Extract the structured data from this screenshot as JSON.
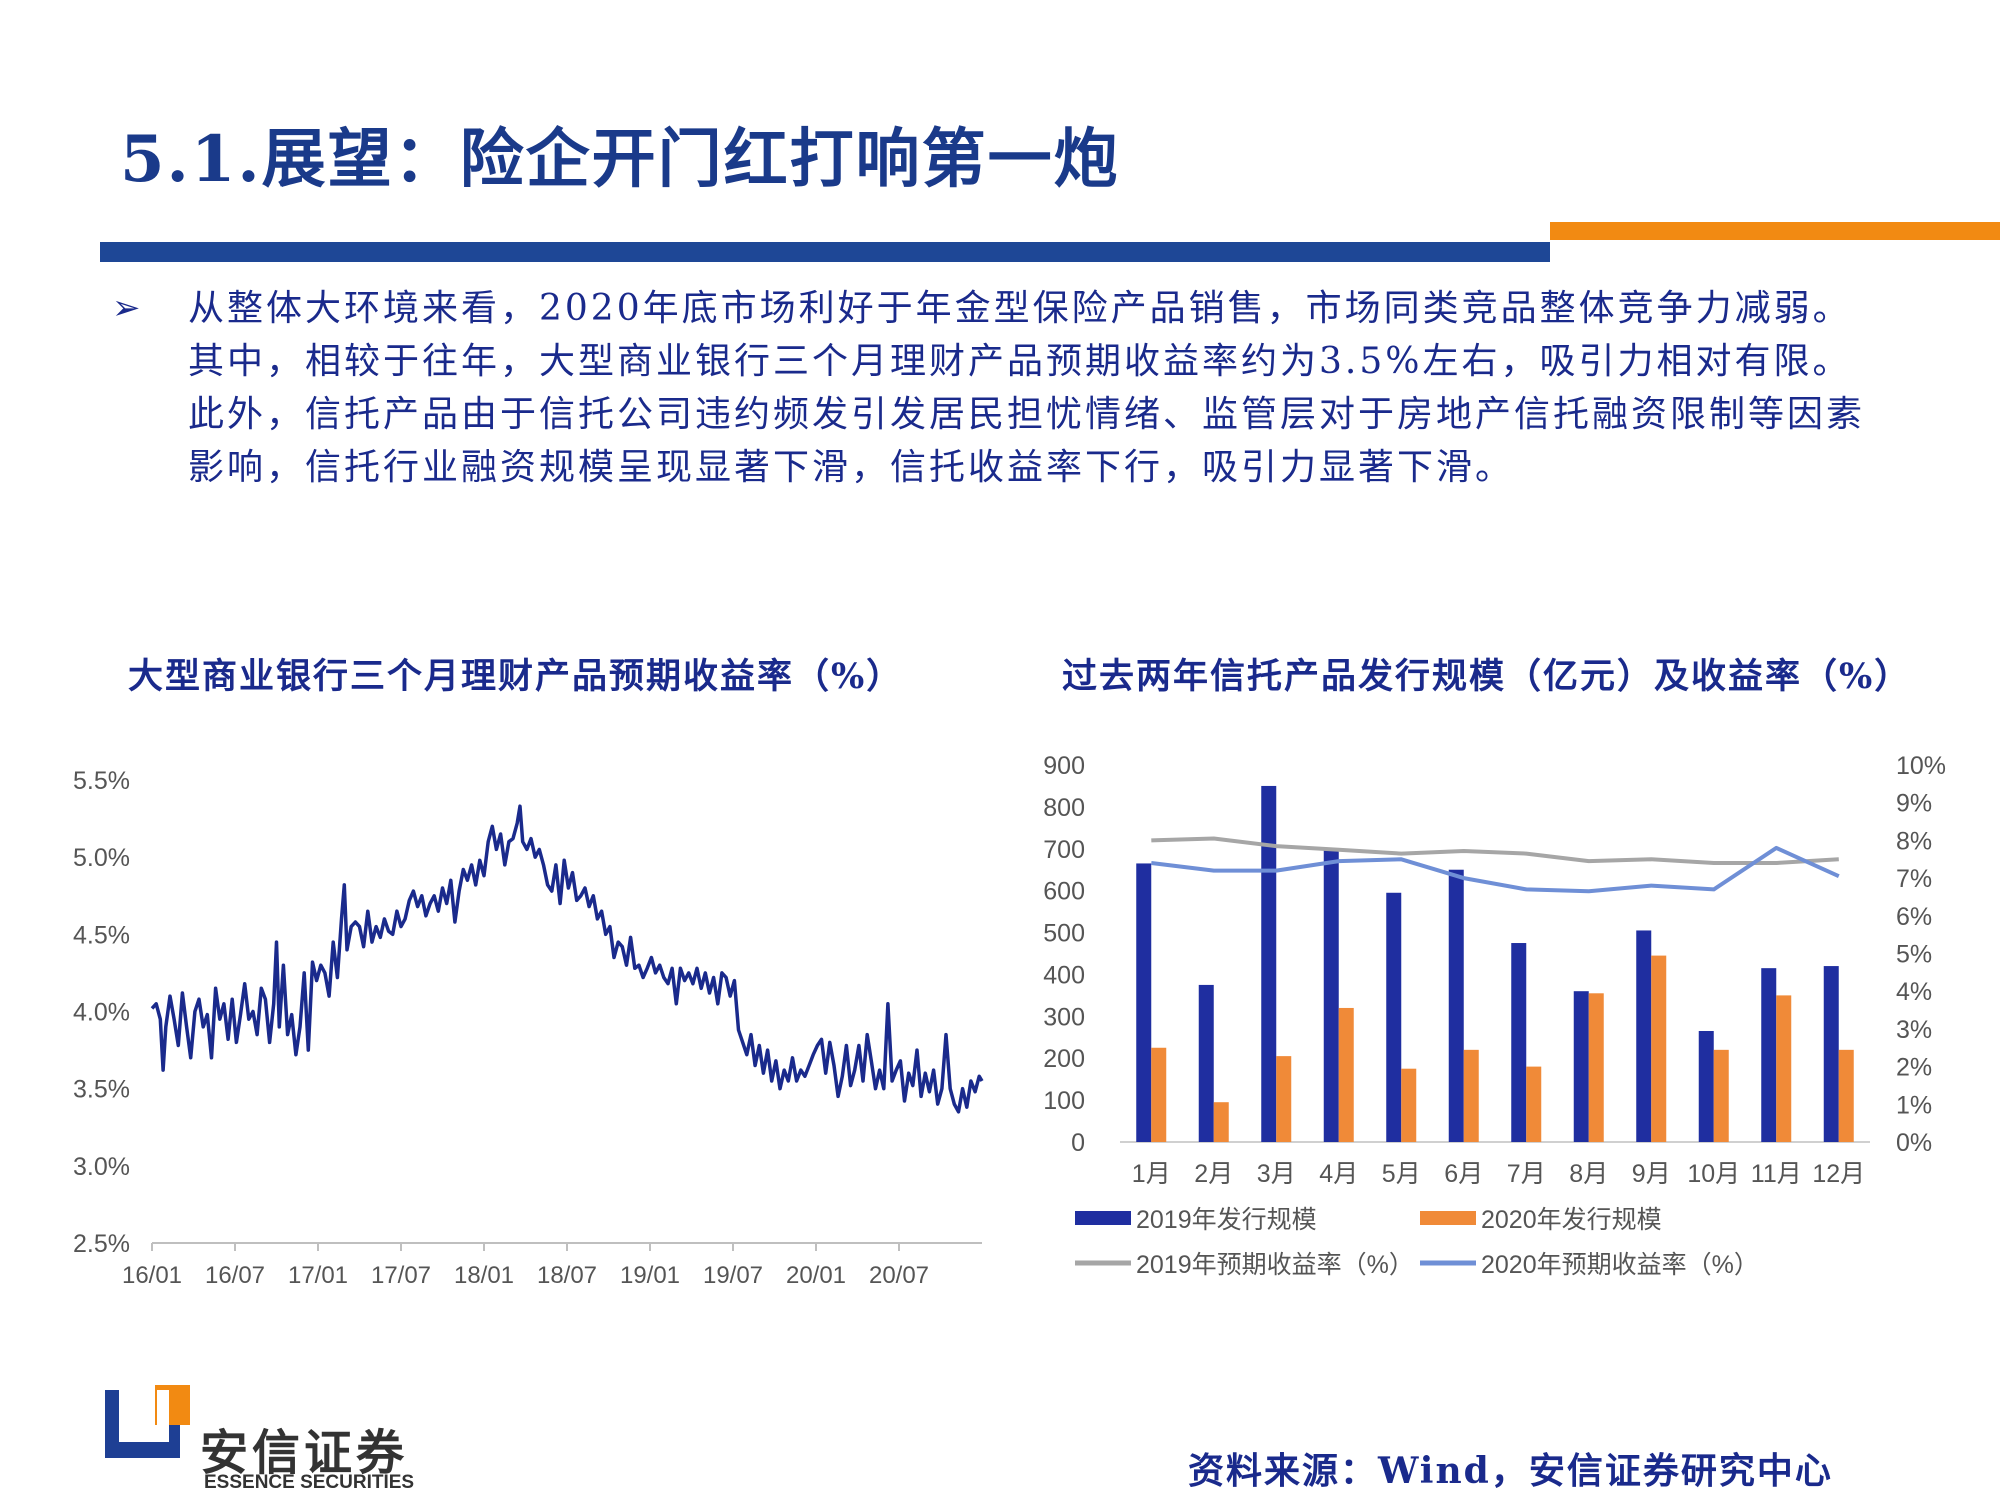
{
  "page": {
    "title": "5.1.展望：险企开门红打响第一炮",
    "bullet_symbol": "➢",
    "body_text": "从整体大环境来看，2020年底市场利好于年金型保险产品销售，市场同类竞品整体竞争力减弱。其中，相较于往年，大型商业银行三个月理财产品预期收益率约为3.5%左右，吸引力相对有限。此外，信托产品由于信托公司违约频发引发居民担忧情绪、监管层对于房地产信托融资限制等因素影响，信托行业融资规模呈现显著下滑，信托收益率下行，吸引力显著下滑。",
    "source": "资料来源：Wind，安信证券研究中心",
    "logo_name": "安信证券",
    "logo_sub": "ESSENCE SECURITIES",
    "colors": {
      "navy": "#1e4796",
      "orange": "#f28a12",
      "text": "#1a2a8c"
    }
  },
  "chart_data": [
    {
      "type": "line",
      "title": "大型商业银行三个月理财产品预期收益率（%）",
      "ylim": [
        2.5,
        5.5
      ],
      "yticks": [
        "5.5%",
        "5.0%",
        "4.5%",
        "4.0%",
        "3.5%",
        "3.0%",
        "2.5%"
      ],
      "xticks": [
        "16/01",
        "16/07",
        "17/01",
        "17/07",
        "18/01",
        "18/07",
        "19/01",
        "19/07",
        "20/01",
        "20/07"
      ],
      "x_months_range": [
        0,
        60
      ],
      "series": [
        {
          "color": "#1a2a8c",
          "points": [
            [
              0,
              4.02
            ],
            [
              0.3,
              4.05
            ],
            [
              0.6,
              3.95
            ],
            [
              0.8,
              3.62
            ],
            [
              1,
              3.9
            ],
            [
              1.3,
              4.1
            ],
            [
              1.6,
              3.95
            ],
            [
              1.9,
              3.78
            ],
            [
              2.2,
              4.12
            ],
            [
              2.5,
              3.9
            ],
            [
              2.8,
              3.7
            ],
            [
              3.1,
              4.0
            ],
            [
              3.4,
              4.08
            ],
            [
              3.7,
              3.9
            ],
            [
              4,
              3.98
            ],
            [
              4.3,
              3.7
            ],
            [
              4.6,
              4.15
            ],
            [
              4.9,
              3.95
            ],
            [
              5.2,
              4.05
            ],
            [
              5.5,
              3.82
            ],
            [
              5.8,
              4.08
            ],
            [
              6.1,
              3.8
            ],
            [
              6.4,
              3.98
            ],
            [
              6.7,
              4.18
            ],
            [
              7,
              3.95
            ],
            [
              7.3,
              4.0
            ],
            [
              7.6,
              3.85
            ],
            [
              7.9,
              4.15
            ],
            [
              8.2,
              4.08
            ],
            [
              8.5,
              3.8
            ],
            [
              8.8,
              4.05
            ],
            [
              9,
              4.45
            ],
            [
              9.2,
              3.9
            ],
            [
              9.5,
              4.3
            ],
            [
              9.8,
              3.85
            ],
            [
              10.1,
              3.98
            ],
            [
              10.4,
              3.72
            ],
            [
              10.7,
              3.9
            ],
            [
              11,
              4.25
            ],
            [
              11.3,
              3.75
            ],
            [
              11.6,
              4.32
            ],
            [
              11.9,
              4.2
            ],
            [
              12.2,
              4.3
            ],
            [
              12.5,
              4.25
            ],
            [
              12.8,
              4.1
            ],
            [
              13.1,
              4.45
            ],
            [
              13.4,
              4.22
            ],
            [
              13.7,
              4.6
            ],
            [
              13.9,
              4.82
            ],
            [
              14.1,
              4.4
            ],
            [
              14.4,
              4.55
            ],
            [
              14.7,
              4.58
            ],
            [
              15,
              4.55
            ],
            [
              15.3,
              4.42
            ],
            [
              15.6,
              4.65
            ],
            [
              15.9,
              4.45
            ],
            [
              16.2,
              4.55
            ],
            [
              16.5,
              4.48
            ],
            [
              16.8,
              4.6
            ],
            [
              17.1,
              4.52
            ],
            [
              17.4,
              4.5
            ],
            [
              17.7,
              4.65
            ],
            [
              18,
              4.55
            ],
            [
              18.3,
              4.6
            ],
            [
              18.6,
              4.72
            ],
            [
              18.9,
              4.78
            ],
            [
              19.2,
              4.68
            ],
            [
              19.5,
              4.75
            ],
            [
              19.8,
              4.62
            ],
            [
              20.1,
              4.7
            ],
            [
              20.4,
              4.75
            ],
            [
              20.7,
              4.65
            ],
            [
              21,
              4.8
            ],
            [
              21.3,
              4.7
            ],
            [
              21.6,
              4.85
            ],
            [
              21.9,
              4.58
            ],
            [
              22.2,
              4.78
            ],
            [
              22.5,
              4.92
            ],
            [
              22.8,
              4.85
            ],
            [
              23.1,
              4.95
            ],
            [
              23.4,
              4.82
            ],
            [
              23.7,
              4.98
            ],
            [
              24,
              4.88
            ],
            [
              24.3,
              5.1
            ],
            [
              24.6,
              5.2
            ],
            [
              24.9,
              5.05
            ],
            [
              25.2,
              5.15
            ],
            [
              25.5,
              4.95
            ],
            [
              25.8,
              5.1
            ],
            [
              26.1,
              5.12
            ],
            [
              26.4,
              5.22
            ],
            [
              26.6,
              5.33
            ],
            [
              26.8,
              5.1
            ],
            [
              27.1,
              5.05
            ],
            [
              27.4,
              5.12
            ],
            [
              27.7,
              5.0
            ],
            [
              28,
              5.05
            ],
            [
              28.3,
              4.95
            ],
            [
              28.6,
              4.82
            ],
            [
              28.9,
              4.78
            ],
            [
              29.2,
              4.95
            ],
            [
              29.5,
              4.7
            ],
            [
              29.8,
              4.98
            ],
            [
              30.1,
              4.8
            ],
            [
              30.4,
              4.9
            ],
            [
              30.7,
              4.72
            ],
            [
              31,
              4.75
            ],
            [
              31.3,
              4.8
            ],
            [
              31.6,
              4.68
            ],
            [
              31.9,
              4.75
            ],
            [
              32.2,
              4.6
            ],
            [
              32.5,
              4.65
            ],
            [
              32.8,
              4.5
            ],
            [
              33.1,
              4.55
            ],
            [
              33.4,
              4.35
            ],
            [
              33.7,
              4.45
            ],
            [
              34,
              4.42
            ],
            [
              34.3,
              4.3
            ],
            [
              34.6,
              4.48
            ],
            [
              34.9,
              4.28
            ],
            [
              35.2,
              4.3
            ],
            [
              35.5,
              4.22
            ],
            [
              35.8,
              4.28
            ],
            [
              36.1,
              4.35
            ],
            [
              36.4,
              4.25
            ],
            [
              36.7,
              4.3
            ],
            [
              37,
              4.22
            ],
            [
              37.3,
              4.18
            ],
            [
              37.6,
              4.28
            ],
            [
              37.9,
              4.05
            ],
            [
              38.2,
              4.28
            ],
            [
              38.5,
              4.2
            ],
            [
              38.8,
              4.25
            ],
            [
              39.1,
              4.18
            ],
            [
              39.4,
              4.28
            ],
            [
              39.7,
              4.15
            ],
            [
              40,
              4.25
            ],
            [
              40.3,
              4.12
            ],
            [
              40.6,
              4.22
            ],
            [
              40.9,
              4.05
            ],
            [
              41.2,
              4.25
            ],
            [
              41.5,
              4.22
            ],
            [
              41.8,
              4.1
            ],
            [
              42.1,
              4.2
            ],
            [
              42.4,
              3.88
            ],
            [
              42.7,
              3.8
            ],
            [
              43,
              3.72
            ],
            [
              43.3,
              3.85
            ],
            [
              43.6,
              3.65
            ],
            [
              43.9,
              3.78
            ],
            [
              44.2,
              3.6
            ],
            [
              44.5,
              3.75
            ],
            [
              44.8,
              3.55
            ],
            [
              45.1,
              3.68
            ],
            [
              45.4,
              3.5
            ],
            [
              45.7,
              3.62
            ],
            [
              46,
              3.55
            ],
            [
              46.3,
              3.7
            ],
            [
              46.6,
              3.55
            ],
            [
              46.9,
              3.62
            ],
            [
              47.2,
              3.58
            ],
            [
              47.5,
              3.65
            ],
            [
              47.8,
              3.72
            ],
            [
              48.1,
              3.78
            ],
            [
              48.4,
              3.82
            ],
            [
              48.7,
              3.6
            ],
            [
              49,
              3.8
            ],
            [
              49.3,
              3.65
            ],
            [
              49.6,
              3.45
            ],
            [
              49.9,
              3.58
            ],
            [
              50.2,
              3.78
            ],
            [
              50.5,
              3.52
            ],
            [
              50.8,
              3.62
            ],
            [
              51.1,
              3.78
            ],
            [
              51.4,
              3.55
            ],
            [
              51.7,
              3.85
            ],
            [
              52,
              3.68
            ],
            [
              52.3,
              3.5
            ],
            [
              52.6,
              3.62
            ],
            [
              52.9,
              3.5
            ],
            [
              53.2,
              4.05
            ],
            [
              53.5,
              3.55
            ],
            [
              53.8,
              3.62
            ],
            [
              54.1,
              3.68
            ],
            [
              54.4,
              3.42
            ],
            [
              54.7,
              3.6
            ],
            [
              55,
              3.52
            ],
            [
              55.3,
              3.75
            ],
            [
              55.6,
              3.45
            ],
            [
              55.9,
              3.6
            ],
            [
              56.2,
              3.48
            ],
            [
              56.5,
              3.62
            ],
            [
              56.8,
              3.4
            ],
            [
              57.1,
              3.5
            ],
            [
              57.4,
              3.85
            ],
            [
              57.7,
              3.5
            ],
            [
              58,
              3.4
            ],
            [
              58.3,
              3.35
            ],
            [
              58.6,
              3.5
            ],
            [
              58.9,
              3.38
            ],
            [
              59.2,
              3.55
            ],
            [
              59.5,
              3.48
            ],
            [
              59.8,
              3.58
            ],
            [
              60,
              3.55
            ]
          ]
        }
      ]
    },
    {
      "type": "bar",
      "title": "过去两年信托产品发行规模（亿元）及收益率（%）",
      "categories": [
        "1月",
        "2月",
        "3月",
        "4月",
        "5月",
        "6月",
        "7月",
        "8月",
        "9月",
        "10月",
        "11月",
        "12月"
      ],
      "y_left_lim": [
        0,
        900
      ],
      "y_left_ticks": [
        "900",
        "800",
        "700",
        "600",
        "500",
        "400",
        "300",
        "200",
        "100",
        "0"
      ],
      "y_right_lim": [
        0,
        10
      ],
      "y_right_ticks": [
        "10%",
        "9%",
        "8%",
        "7%",
        "6%",
        "5%",
        "4%",
        "3%",
        "2%",
        "1%",
        "0%"
      ],
      "series": [
        {
          "name": "2019年发行规模",
          "kind": "bar",
          "axis": "left",
          "color": "#1f2ea0",
          "values": [
            665,
            375,
            850,
            700,
            595,
            650,
            475,
            360,
            505,
            265,
            415,
            420
          ]
        },
        {
          "name": "2020年发行规模",
          "kind": "bar",
          "axis": "left",
          "color": "#f08a38",
          "values": [
            225,
            95,
            205,
            320,
            175,
            220,
            180,
            355,
            445,
            220,
            350,
            220
          ]
        },
        {
          "name": "2019年预期收益率（%）",
          "kind": "line",
          "axis": "right",
          "color": "#a6a6a6",
          "values": [
            8.0,
            8.05,
            7.85,
            7.75,
            7.65,
            7.72,
            7.65,
            7.45,
            7.5,
            7.4,
            7.4,
            7.5
          ]
        },
        {
          "name": "2020年预期收益率（%）",
          "kind": "line",
          "axis": "right",
          "color": "#6f8fd6",
          "values": [
            7.4,
            7.2,
            7.2,
            7.45,
            7.5,
            7.0,
            6.7,
            6.65,
            6.8,
            6.7,
            7.8,
            7.05
          ]
        }
      ],
      "legend_position": "bottom"
    }
  ]
}
